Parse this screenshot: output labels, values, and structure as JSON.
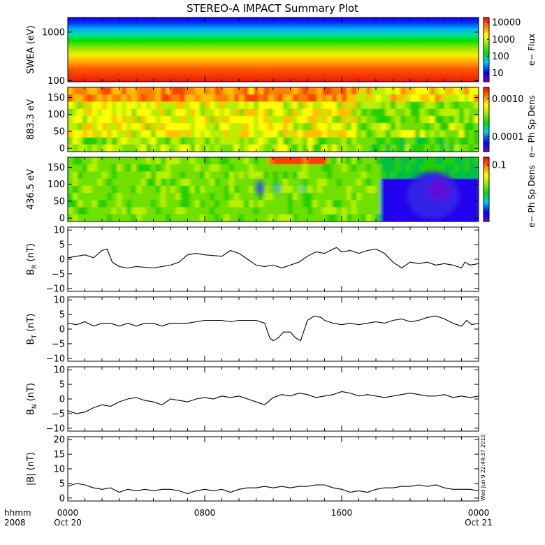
{
  "title": "STEREO-A IMPACT Summary Plot",
  "timestamp": "Wed Jun 9 22:44:37 2010",
  "time_axis": {
    "row_label": "hhmm",
    "year": "2008",
    "ticks": [
      {
        "hour": 0,
        "label": "0000",
        "sub": "Oct 20"
      },
      {
        "hour": 8,
        "label": "0800",
        "sub": ""
      },
      {
        "hour": 16,
        "label": "1600",
        "sub": ""
      },
      {
        "hour": 24,
        "label": "0000",
        "sub": "Oct 21"
      }
    ],
    "range_hours": [
      0,
      24
    ]
  },
  "chart_data": [
    {
      "type": "heatmap",
      "id": "swea",
      "ylabel": "SWEA (eV)",
      "yscale": "log",
      "ylim": [
        95,
        2000
      ],
      "yticks": [
        {
          "v": 100,
          "label": "100"
        },
        {
          "v": 1000,
          "label": "1000"
        }
      ],
      "colorbar": {
        "label": "e− Flux",
        "scale": "log",
        "range": [
          3,
          20000
        ],
        "ticks": [
          {
            "v": 10000,
            "label": "10000"
          },
          {
            "v": 1000,
            "label": "1000"
          },
          {
            "v": 100,
            "label": "100"
          },
          {
            "v": 10,
            "label": "10"
          }
        ]
      }
    },
    {
      "type": "heatmap",
      "id": "pad883",
      "ylabel": "883.3 eV",
      "yscale": "linear",
      "ylim": [
        -10,
        180
      ],
      "yticks": [
        {
          "v": 0,
          "label": "0"
        },
        {
          "v": 50,
          "label": "50"
        },
        {
          "v": 100,
          "label": "100"
        },
        {
          "v": 150,
          "label": "150"
        }
      ],
      "colorbar": {
        "label": "e− Ph Sp Dens",
        "scale": "log",
        "range": [
          4e-05,
          0.002
        ],
        "ticks": [
          {
            "v": 0.001,
            "label": "0.0010"
          },
          {
            "v": 0.0001,
            "label": "0.0001"
          }
        ]
      }
    },
    {
      "type": "heatmap",
      "id": "pad436",
      "ylabel": "436.5 eV",
      "yscale": "linear",
      "ylim": [
        -10,
        180
      ],
      "yticks": [
        {
          "v": 0,
          "label": "0"
        },
        {
          "v": 50,
          "label": "50"
        },
        {
          "v": 100,
          "label": "100"
        },
        {
          "v": 150,
          "label": "150"
        }
      ],
      "colorbar": {
        "label": "e− Ph Sp Dens",
        "scale": "log",
        "range": [
          0.008,
          0.14
        ],
        "ticks": [
          {
            "v": 0.1,
            "label": "0.1"
          }
        ]
      }
    },
    {
      "type": "line",
      "id": "br",
      "ylabel": "B",
      "ylabel_sub": "R",
      "ylabel_unit": "(nT)",
      "ylim": [
        -11,
        11
      ],
      "yticks": [
        {
          "v": -10,
          "label": "−10"
        },
        {
          "v": -5,
          "label": "−5"
        },
        {
          "v": 0,
          "label": "0"
        },
        {
          "v": 5,
          "label": "5"
        },
        {
          "v": 10,
          "label": "10"
        }
      ],
      "x": [
        0,
        0.5,
        1,
        1.5,
        2,
        2.3,
        2.6,
        3,
        3.5,
        4,
        5,
        6,
        6.5,
        7,
        7.5,
        8,
        9,
        9.5,
        10,
        10.5,
        11,
        11.5,
        12,
        12.5,
        13,
        13.5,
        14,
        14.5,
        15,
        15.5,
        15.7,
        16,
        16.5,
        17,
        17.5,
        18,
        18.5,
        19,
        19.5,
        20,
        20.5,
        21,
        21.5,
        22,
        22.5,
        23,
        23.2,
        23.5,
        24
      ],
      "y": [
        0.5,
        1,
        1.5,
        0.5,
        3,
        3.5,
        -1,
        -2.5,
        -3,
        -2.5,
        -3,
        -2,
        -1,
        1.5,
        2,
        1.5,
        1,
        3,
        2,
        0,
        -2,
        -2.5,
        -2,
        -3,
        -2,
        -1,
        1,
        2.5,
        2,
        3.5,
        4,
        2.5,
        3,
        2,
        3,
        3.5,
        2,
        -1,
        -3,
        -1,
        -1.5,
        -1,
        -2,
        -1.5,
        -2,
        -3,
        -1,
        -2,
        -1.5
      ]
    },
    {
      "type": "line",
      "id": "bt",
      "ylabel": "B",
      "ylabel_sub": "T",
      "ylabel_unit": "(nT)",
      "ylim": [
        -11,
        11
      ],
      "yticks": [
        {
          "v": -10,
          "label": "−10"
        },
        {
          "v": -5,
          "label": "−5"
        },
        {
          "v": 0,
          "label": "0"
        },
        {
          "v": 5,
          "label": "5"
        },
        {
          "v": 10,
          "label": "10"
        }
      ],
      "x": [
        0,
        0.5,
        1,
        1.5,
        2,
        2.5,
        3,
        3.5,
        4,
        4.5,
        5,
        5.5,
        6,
        6.5,
        7,
        7.5,
        8,
        8.5,
        9,
        9.5,
        10,
        10.5,
        11,
        11.5,
        11.8,
        12,
        12.3,
        12.6,
        13,
        13.3,
        13.6,
        14,
        14.4,
        14.8,
        15,
        15.5,
        16,
        16.5,
        17,
        17.5,
        18,
        18.5,
        19,
        19.5,
        20,
        20.5,
        21,
        21.5,
        22,
        22.5,
        23,
        23.3,
        23.6,
        24
      ],
      "y": [
        2,
        1.5,
        2.5,
        1,
        2,
        2,
        1,
        2,
        1,
        2,
        2,
        1,
        2,
        2,
        2,
        2.5,
        3,
        3,
        3,
        2.5,
        3,
        3,
        3,
        2,
        -3,
        -4,
        -3,
        -1,
        -1,
        -3,
        -4,
        3,
        4.5,
        4,
        3,
        2,
        1.5,
        2,
        1.5,
        2,
        2.5,
        2,
        3,
        3.5,
        2.5,
        3,
        4,
        4.5,
        3.5,
        2,
        1,
        3,
        1.5,
        2
      ]
    },
    {
      "type": "line",
      "id": "bn",
      "ylabel": "B",
      "ylabel_sub": "N",
      "ylabel_unit": "(nT)",
      "ylim": [
        -11,
        11
      ],
      "yticks": [
        {
          "v": -10,
          "label": "−10"
        },
        {
          "v": -5,
          "label": "−5"
        },
        {
          "v": 0,
          "label": "0"
        },
        {
          "v": 5,
          "label": "5"
        },
        {
          "v": 10,
          "label": "10"
        }
      ],
      "x": [
        0,
        0.5,
        1,
        1.5,
        2,
        2.5,
        3,
        3.5,
        4,
        4.5,
        5,
        5.5,
        6,
        6.5,
        7,
        7.5,
        8,
        8.5,
        9,
        9.5,
        10,
        10.5,
        11,
        11.5,
        12,
        12.5,
        13,
        13.5,
        14,
        14.5,
        15,
        15.5,
        16,
        16.5,
        17,
        17.5,
        18,
        18.5,
        19,
        19.5,
        20,
        20.5,
        21,
        21.5,
        22,
        22.5,
        23,
        23.5,
        24
      ],
      "y": [
        -4,
        -5,
        -4.5,
        -3,
        -2,
        -2.5,
        -1,
        0,
        0.5,
        -0.5,
        -1,
        -2,
        0,
        -0.5,
        -1,
        0,
        0.5,
        0,
        1,
        0.5,
        1,
        0,
        -1,
        -2,
        0.5,
        1.5,
        1,
        2,
        1.5,
        0.5,
        1,
        1.5,
        2.5,
        2,
        1,
        1.5,
        1,
        0.5,
        1,
        1.5,
        2,
        1.5,
        1,
        1,
        1.5,
        0.5,
        1,
        0.5,
        1
      ]
    },
    {
      "type": "line",
      "id": "bmag",
      "ylabel": "|B| (nT)",
      "ylabel_sub": "",
      "ylabel_unit": "",
      "ylim": [
        -1,
        21
      ],
      "yticks": [
        {
          "v": 0,
          "label": "0"
        },
        {
          "v": 5,
          "label": "5"
        },
        {
          "v": 10,
          "label": "10"
        },
        {
          "v": 15,
          "label": "15"
        },
        {
          "v": 20,
          "label": "20"
        }
      ],
      "x": [
        0,
        0.5,
        1,
        1.5,
        2,
        2.5,
        3,
        3.5,
        4,
        4.5,
        5,
        5.5,
        6,
        6.5,
        7,
        7.5,
        8,
        8.5,
        9,
        9.5,
        10,
        10.5,
        11,
        11.5,
        12,
        12.5,
        13,
        13.5,
        14,
        14.5,
        15,
        15.5,
        16,
        16.5,
        17,
        17.5,
        18,
        18.5,
        19,
        19.5,
        20,
        20.5,
        21,
        21.5,
        22,
        22.5,
        23,
        23.5,
        24
      ],
      "y": [
        4,
        5,
        4.5,
        3.5,
        3,
        3.5,
        2,
        3,
        2.5,
        3,
        2.5,
        3,
        3,
        2.5,
        1.5,
        2.5,
        3,
        2.5,
        3,
        2,
        3,
        3.5,
        3.5,
        4,
        3.5,
        4,
        3.5,
        4,
        4,
        4.5,
        4.5,
        3.5,
        3,
        2,
        2.5,
        2,
        3,
        3.5,
        3.5,
        4,
        4,
        4.5,
        4,
        4.5,
        3.5,
        3,
        3,
        3,
        2.5
      ]
    }
  ]
}
